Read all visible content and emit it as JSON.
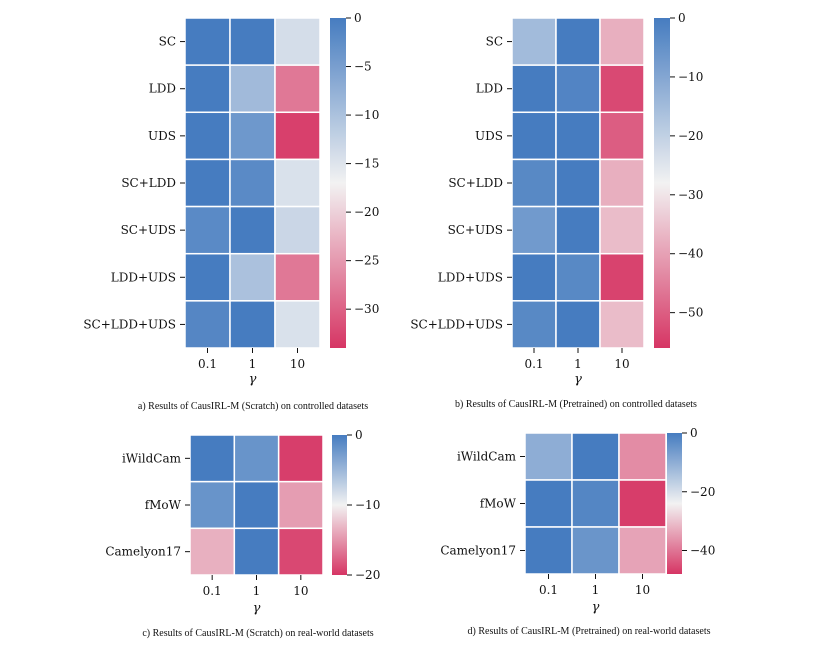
{
  "chart_data": [
    {
      "type": "heatmap",
      "title": "",
      "caption": "a) Results of CausIRL-M (Scratch) on controlled datasets",
      "xlabel": "γ",
      "x_categories": [
        "0.1",
        "1",
        "10"
      ],
      "y_categories": [
        "SC",
        "LDD",
        "UDS",
        "SC+LDD",
        "SC+UDS",
        "LDD+UDS",
        "SC+LDD+UDS"
      ],
      "values": [
        [
          0,
          0,
          -14
        ],
        [
          0,
          -9,
          -28
        ],
        [
          0,
          -4,
          -33
        ],
        [
          0,
          -2,
          -14.5
        ],
        [
          -2,
          0,
          -13
        ],
        [
          0,
          -10,
          -28
        ],
        [
          -1.5,
          0,
          -14.5
        ]
      ],
      "colorbar": {
        "vmin": -34,
        "vmax": 0,
        "ticks": [
          0,
          -5,
          -10,
          -15,
          -20,
          -25,
          -30
        ],
        "tick_labels": [
          "0",
          "−5",
          "−10",
          "−15",
          "−20",
          "−25",
          "−30"
        ]
      }
    },
    {
      "type": "heatmap",
      "title": "",
      "caption": "b) Results of CausIRL-M (Pretrained) on controlled datasets",
      "xlabel": "γ",
      "x_categories": [
        "0.1",
        "1",
        "10"
      ],
      "y_categories": [
        "SC",
        "LDD",
        "UDS",
        "SC+LDD",
        "SC+UDS",
        "LDD+UDS",
        "SC+LDD+UDS"
      ],
      "values": [
        [
          -15,
          0,
          -38
        ],
        [
          0,
          -2,
          -53
        ],
        [
          0,
          0,
          -50
        ],
        [
          -3,
          0,
          -38
        ],
        [
          -7,
          0,
          -36
        ],
        [
          0,
          -3,
          -54
        ],
        [
          -3,
          0,
          -36
        ]
      ],
      "colorbar": {
        "vmin": -56,
        "vmax": 0,
        "ticks": [
          0,
          -10,
          -20,
          -30,
          -40,
          -50
        ],
        "tick_labels": [
          "0",
          "−10",
          "−20",
          "−30",
          "−40",
          "−50"
        ]
      }
    },
    {
      "type": "heatmap",
      "title": "",
      "caption": "c) Results of CausIRL-M (Scratch) on real-world datasets",
      "xlabel": "γ",
      "x_categories": [
        "0.1",
        "1",
        "10"
      ],
      "y_categories": [
        "iWildCam",
        "fMoW",
        "Camelyon17"
      ],
      "values": [
        [
          0,
          -2,
          -19.5
        ],
        [
          -2,
          0,
          -14.5
        ],
        [
          -13.5,
          0,
          -19
        ]
      ],
      "colorbar": {
        "vmin": -20,
        "vmax": 0,
        "ticks": [
          0,
          -10,
          -20
        ],
        "tick_labels": [
          "0",
          "−10",
          "−20"
        ]
      }
    },
    {
      "type": "heatmap",
      "title": "",
      "caption": "d) Results of CausIRL-M (Pretrained) on real-world datasets",
      "xlabel": "γ",
      "x_categories": [
        "0.1",
        "1",
        "10"
      ],
      "y_categories": [
        "iWildCam",
        "fMoW",
        "Camelyon17"
      ],
      "values": [
        [
          -10,
          0,
          -37
        ],
        [
          0,
          -2,
          -47
        ],
        [
          0,
          -5,
          -34
        ]
      ],
      "colorbar": {
        "vmin": -48,
        "vmax": 0,
        "ticks": [
          0,
          -20,
          -40
        ],
        "tick_labels": [
          "0",
          "−20",
          "−40"
        ]
      }
    }
  ]
}
